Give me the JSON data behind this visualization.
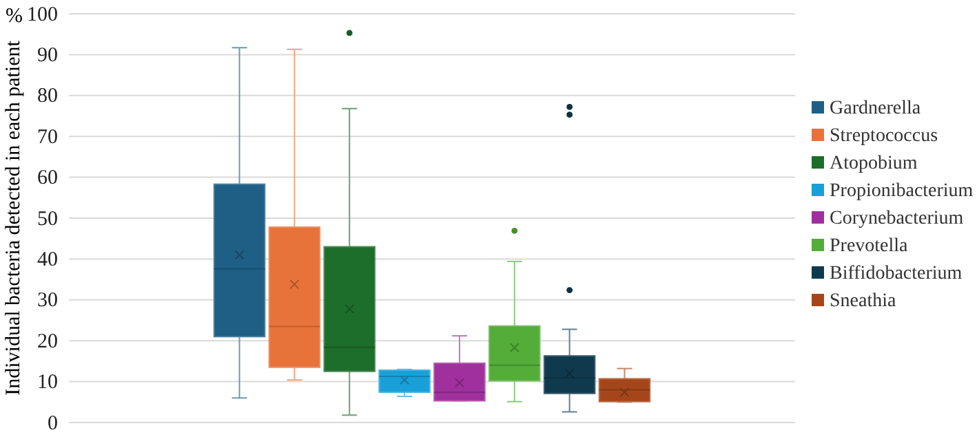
{
  "chart_data": {
    "type": "box",
    "ylabel": "Individual bacteria detected in each patient",
    "annotations": [
      "%"
    ],
    "categories": [
      null
    ],
    "ylim": [
      0,
      100
    ],
    "yticks": [
      0,
      10,
      20,
      30,
      40,
      50,
      60,
      70,
      80,
      90,
      100
    ],
    "grid": "y",
    "legend": "right",
    "marker": "cross",
    "series": [
      {
        "name": "Gardnerella",
        "color": "#1f5f86",
        "boxes": [
          {
            "low": 6,
            "q1": 21,
            "median": 37.6,
            "q3": 58.3,
            "high": 91.7,
            "mean": 41
          }
        ]
      },
      {
        "name": "Streptococcus",
        "color": "#e8733a",
        "boxes": [
          {
            "low": 10.4,
            "q1": 13.5,
            "median": 23.5,
            "q3": 47.8,
            "high": 91.3,
            "mean": 33.8
          }
        ]
      },
      {
        "name": "Atopobium",
        "color": "#1d6e2a",
        "boxes": [
          {
            "low": 1.8,
            "q1": 12.5,
            "median": 18.4,
            "q3": 43,
            "high": 76.8,
            "mean": 27.8,
            "outliers": [
              95.3
            ]
          }
        ]
      },
      {
        "name": "Propionibacterium",
        "color": "#1aa0d8",
        "boxes": [
          {
            "low": 6.4,
            "q1": 7.4,
            "median": 11.3,
            "q3": 12.8,
            "high": 13,
            "mean": 10.4
          }
        ]
      },
      {
        "name": "Corynebacterium",
        "color": "#a0309e",
        "boxes": [
          {
            "low": 5.3,
            "q1": 5.3,
            "median": 7.4,
            "q3": 14.5,
            "high": 21.2,
            "mean": 9.7
          }
        ]
      },
      {
        "name": "Prevotella",
        "color": "#53ad38",
        "boxes": [
          {
            "low": 5.1,
            "q1": 10.2,
            "median": 14,
            "q3": 23.6,
            "high": 39.4,
            "mean": 18.3,
            "outliers": [
              46.9
            ]
          }
        ]
      },
      {
        "name": "Biffidobacterium",
        "color": "#0f3a4e",
        "boxes": [
          {
            "low": 2.6,
            "q1": 7.1,
            "median": 10.9,
            "q3": 16.3,
            "high": 22.8,
            "mean": 12,
            "outliers": [
              77.2,
              75.3,
              32.4
            ]
          }
        ]
      },
      {
        "name": "Sneathia",
        "color": "#a5461a",
        "boxes": [
          {
            "low": 5,
            "q1": 5.1,
            "median": 8,
            "q3": 10.7,
            "high": 13.2,
            "mean": 7.4
          }
        ]
      }
    ]
  }
}
